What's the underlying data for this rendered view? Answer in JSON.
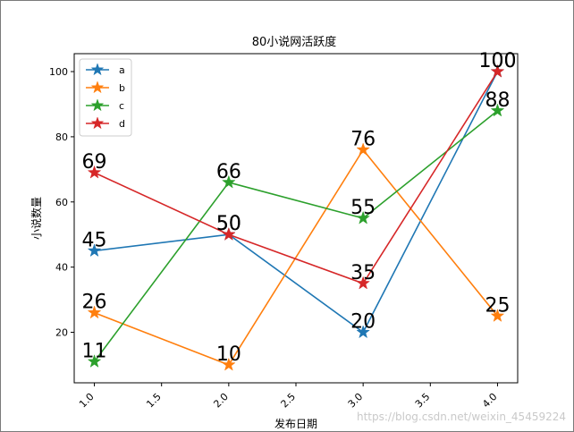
{
  "chart_data": {
    "type": "line",
    "title": "80小说网活跃度",
    "xlabel": "发布日期",
    "ylabel": "小说数量",
    "x": [
      1.0,
      2.0,
      3.0,
      4.0
    ],
    "xlim": [
      0.85,
      4.15
    ],
    "ylim": [
      4.5,
      105.5
    ],
    "xticks": [
      "1.0",
      "1.5",
      "2.0",
      "2.5",
      "3.0",
      "3.5",
      "4.0"
    ],
    "yticks": [
      "20",
      "40",
      "60",
      "80",
      "100"
    ],
    "marker": "star",
    "grid": false,
    "legend_position": "top-left",
    "series": [
      {
        "name": "a",
        "color": "#1f77b4",
        "values": [
          45,
          50,
          20,
          100
        ],
        "labels": [
          "45",
          "50",
          "20",
          "100"
        ]
      },
      {
        "name": "b",
        "color": "#ff7f0e",
        "values": [
          26,
          10,
          76,
          25
        ],
        "labels": [
          "26",
          "10",
          "76",
          "25"
        ]
      },
      {
        "name": "c",
        "color": "#2ca02c",
        "values": [
          11,
          66,
          55,
          88
        ],
        "labels": [
          "11",
          "66",
          "55",
          "88"
        ]
      },
      {
        "name": "d",
        "color": "#d62728",
        "values": [
          69,
          50,
          35,
          100
        ],
        "labels": [
          "69",
          "50",
          "35",
          "100"
        ]
      }
    ]
  },
  "watermark": "https://blog.csdn.net/weixin_45459224"
}
